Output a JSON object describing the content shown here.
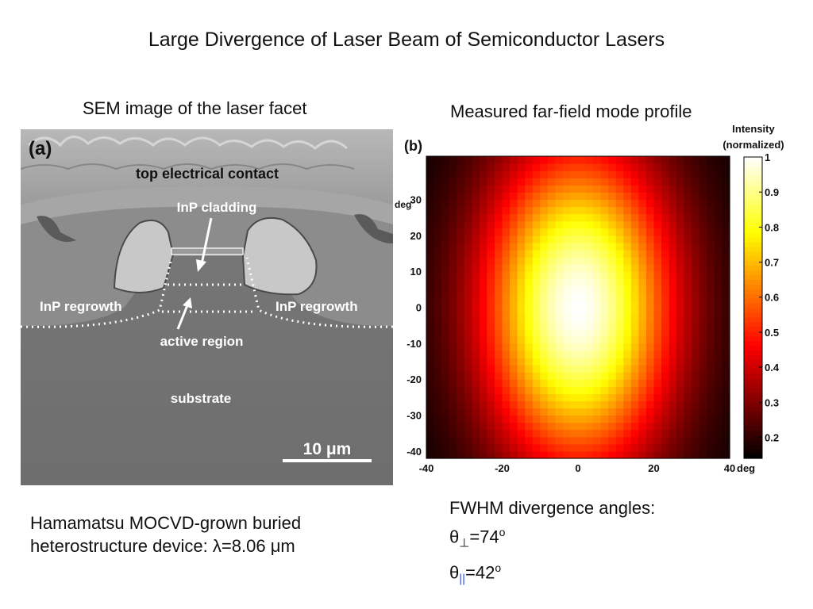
{
  "slide": {
    "title": "Large Divergence of Laser Beam of Semiconductor Lasers"
  },
  "left_panel": {
    "heading": "SEM image of the laser facet",
    "panel_label": "(a)",
    "labels": {
      "top_contact": "top electrical contact",
      "cladding": "InP cladding",
      "regrowth_left": "InP regrowth",
      "regrowth_right": "InP regrowth",
      "active": "active region",
      "substrate": "substrate",
      "scale": "10 μm"
    },
    "caption_line1": "Hamamatsu MOCVD-grown buried",
    "caption_line2_prefix": "heterostructure device: ",
    "caption_lambda": "λ",
    "caption_line2_value": "=8.06 ",
    "caption_unit": "μm"
  },
  "right_panel": {
    "heading": "Measured far-field mode profile",
    "panel_label": "(b)",
    "colorbar_title_1": "Intensity",
    "colorbar_title_2": "(normalized)",
    "y_unit": "deg",
    "x_unit": "deg",
    "fwhm_heading": "FWHM divergence angles:",
    "theta": "θ",
    "perp_symbol": "⊥",
    "perp_value": "=74",
    "par_symbol": "||",
    "par_value": "=42",
    "degree_mark": "o"
  },
  "chart_data": {
    "type": "heatmap",
    "title": "",
    "xlabel": "deg",
    "ylabel": "deg",
    "xlim": [
      -40,
      40
    ],
    "ylim": [
      -42,
      42
    ],
    "x_ticks": [
      -40,
      -20,
      0,
      20,
      40
    ],
    "y_ticks": [
      30,
      20,
      10,
      0,
      -10,
      -20,
      -30,
      -40
    ],
    "colorbar": {
      "label": "Intensity (normalized)",
      "range": [
        0.14,
        1
      ],
      "ticks": [
        1,
        0.9,
        0.8,
        0.7,
        0.6,
        0.5,
        0.4,
        0.3,
        0.2
      ],
      "colormap": "hot"
    },
    "peak": {
      "x": 0,
      "y": 0,
      "value": 1
    },
    "fwhm_deg": {
      "perpendicular": 74,
      "parallel": 42
    }
  }
}
